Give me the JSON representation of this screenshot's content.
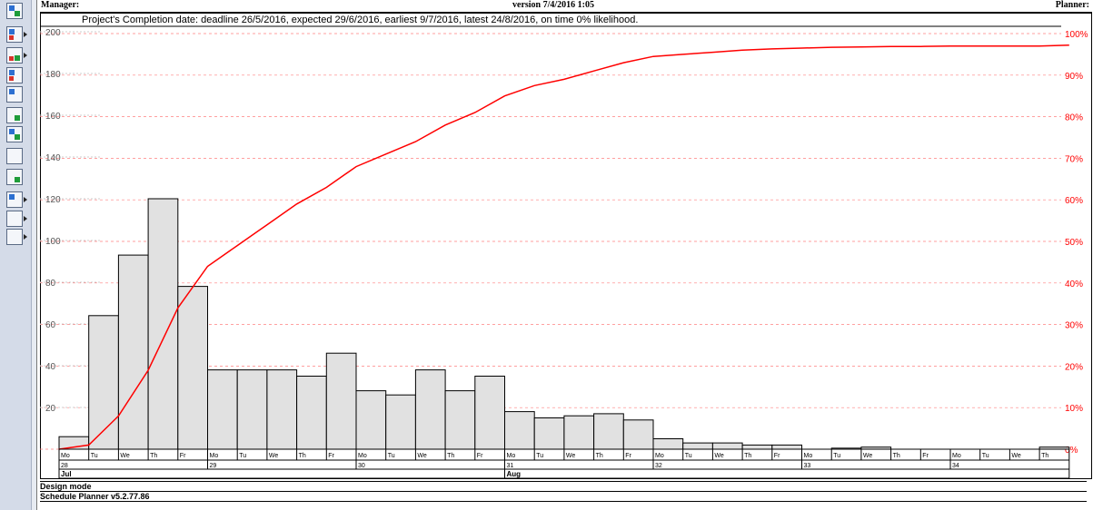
{
  "header": {
    "manager_label": "Manager:",
    "version_text": "version 7/4/2016 1:05",
    "planner_label": "Planner:"
  },
  "toolbar": {
    "icons": [
      "gantt-icon",
      "table-icon",
      "resource-grid-icon",
      "histogram-icon",
      "calendar-grid-icon",
      "cost-icon",
      "network-icon",
      "copy-icon",
      "list-icon",
      "chart-area-icon",
      "layers-icon",
      "report-icon"
    ]
  },
  "status": {
    "mode": "Design mode",
    "app_version": "Schedule Planner v5.2.77.86"
  },
  "chart_data": {
    "type": "bar",
    "title": "Project's Completion date: deadline 26/5/2016, expected 29/6/2016, earliest 9/7/2016, latest 24/8/2016, on time 0% likelihood.",
    "left_axis": {
      "ylim": [
        0,
        210
      ],
      "ticks": [
        20,
        40,
        60,
        80,
        100,
        120,
        140,
        160,
        180,
        200
      ]
    },
    "right_axis": {
      "ylim": [
        0,
        1.05
      ],
      "ticks": [
        "0%",
        "10%",
        "20%",
        "30%",
        "40%",
        "50%",
        "60%",
        "70%",
        "80%",
        "90%",
        "100%"
      ]
    },
    "bar_color": "#e1e1e1",
    "cumulative_color": "#ff0000",
    "day_labels": [
      "Mo",
      "Tu",
      "We",
      "Th",
      "Fr",
      "Mo",
      "Tu",
      "We",
      "Th",
      "Fr",
      "Mo",
      "Tu",
      "We",
      "Th",
      "Fr",
      "Mo",
      "Tu",
      "We",
      "Th",
      "Fr",
      "Mo",
      "Tu",
      "We",
      "Th",
      "Fr",
      "Mo",
      "Tu",
      "We",
      "Th",
      "Fr",
      "Mo",
      "Tu",
      "We",
      "Th"
    ],
    "week_labels": [
      {
        "label": "28",
        "start_day": 0
      },
      {
        "label": "29",
        "start_day": 5
      },
      {
        "label": "30",
        "start_day": 10
      },
      {
        "label": "31",
        "start_day": 15
      },
      {
        "label": "32",
        "start_day": 20
      },
      {
        "label": "33",
        "start_day": 25
      },
      {
        "label": "34",
        "start_day": 30
      }
    ],
    "month_labels": [
      {
        "label": "Jul",
        "start_day": 0
      },
      {
        "label": "Aug",
        "start_day": 15
      }
    ],
    "values": [
      6,
      64,
      93,
      120,
      78,
      38,
      38,
      38,
      35,
      46,
      28,
      26,
      38,
      28,
      35,
      18,
      15,
      16,
      17,
      14,
      5,
      3,
      3,
      2,
      2,
      0,
      0.5,
      1,
      0,
      0,
      0,
      0,
      0,
      1
    ],
    "cumulative": [
      0,
      0.01,
      0.08,
      0.19,
      0.34,
      0.44,
      0.49,
      0.54,
      0.59,
      0.63,
      0.68,
      0.71,
      0.74,
      0.78,
      0.81,
      0.85,
      0.875,
      0.89,
      0.91,
      0.93,
      0.945,
      0.95,
      0.955,
      0.96,
      0.963,
      0.965,
      0.967,
      0.968,
      0.969,
      0.969,
      0.97,
      0.97,
      0.97,
      0.97,
      0.972
    ]
  }
}
